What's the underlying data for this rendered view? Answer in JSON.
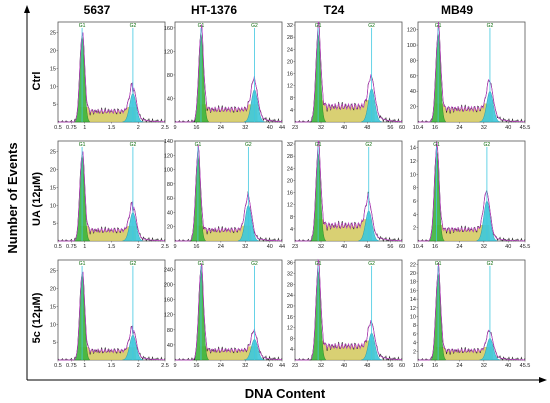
{
  "figure": {
    "xlabel": "DNA Content",
    "ylabel": "Number of Events",
    "columns": [
      "5637",
      "HT-1376",
      "T24",
      "MB49"
    ],
    "rows": [
      "Ctrl",
      "UA (12μM)",
      "5c (12μM)"
    ],
    "gate_labels": [
      "G1",
      "G2"
    ]
  },
  "colors": {
    "g1_fill": "#3cb43c",
    "g2_fill": "#3cc8dc",
    "s_fill": "#d2c85a",
    "model_line": "#c040c8",
    "raw_line": "#222222",
    "marker_line": "#40c8e0",
    "frame": "#555555"
  },
  "chart_data": [
    {
      "type": "area",
      "title": "5637 / Ctrl",
      "row": "Ctrl",
      "column": "5637",
      "x_ticks": [
        "0.5",
        "0.75",
        "1",
        "1.5",
        "2",
        "2.5"
      ],
      "y_ticks": [
        "5",
        "10",
        "15",
        "20",
        "25"
      ],
      "g1": {
        "x": 0.95,
        "peak": 24
      },
      "g2": {
        "x": 1.9,
        "peak": 8
      },
      "s_level": 3.5,
      "ylim": [
        0,
        28
      ]
    },
    {
      "type": "area",
      "title": "HT-1376 / Ctrl",
      "row": "Ctrl",
      "column": "HT-1376",
      "x_ticks": [
        "9",
        "16",
        "24",
        "32",
        "40",
        "44"
      ],
      "y_ticks": [
        "40",
        "80",
        "120",
        "160"
      ],
      "g1": {
        "x": 17.5,
        "peak": 150
      },
      "g2": {
        "x": 35,
        "peak": 55
      },
      "s_level": 25,
      "ylim": [
        0,
        170
      ]
    },
    {
      "type": "area",
      "title": "T24 / Ctrl",
      "row": "Ctrl",
      "column": "T24",
      "x_ticks": [
        "23",
        "32",
        "40",
        "48",
        "56",
        "60"
      ],
      "y_ticks": [
        "4",
        "8",
        "12",
        "16",
        "20",
        "24",
        "28",
        "32"
      ],
      "g1": {
        "x": 31,
        "peak": 29
      },
      "g2": {
        "x": 49.5,
        "peak": 11
      },
      "s_level": 6,
      "ylim": [
        0,
        33
      ]
    },
    {
      "type": "area",
      "title": "MB49 / Ctrl",
      "row": "Ctrl",
      "column": "MB49",
      "x_ticks": [
        "10.4",
        "16",
        "24",
        "32",
        "40",
        "45.5"
      ],
      "y_ticks": [
        "20",
        "40",
        "60",
        "80",
        "100",
        "120"
      ],
      "g1": {
        "x": 17,
        "peak": 115
      },
      "g2": {
        "x": 34,
        "peak": 40
      },
      "s_level": 20,
      "ylim": [
        0,
        130
      ]
    },
    {
      "type": "area",
      "title": "5637 / UA (12μM)",
      "row": "UA (12μM)",
      "column": "5637",
      "x_ticks": [
        "0.5",
        "0.75",
        "1",
        "1.5",
        "2",
        "2.5"
      ],
      "y_ticks": [
        "5",
        "10",
        "15",
        "20",
        "25"
      ],
      "g1": {
        "x": 0.95,
        "peak": 24
      },
      "g2": {
        "x": 1.9,
        "peak": 8
      },
      "s_level": 3.5,
      "ylim": [
        0,
        28
      ]
    },
    {
      "type": "area",
      "title": "HT-1376 / UA (12μM)",
      "row": "UA (12μM)",
      "column": "HT-1376",
      "x_ticks": [
        "9",
        "16",
        "24",
        "32",
        "40",
        "44"
      ],
      "y_ticks": [
        "20",
        "40",
        "60",
        "80",
        "100",
        "120",
        "140"
      ],
      "g1": {
        "x": 16.5,
        "peak": 120
      },
      "g2": {
        "x": 33,
        "peak": 50
      },
      "s_level": 18,
      "ylim": [
        0,
        140
      ]
    },
    {
      "type": "area",
      "title": "T24 / UA (12μM)",
      "row": "UA (12μM)",
      "column": "T24",
      "x_ticks": [
        "23",
        "32",
        "40",
        "48",
        "56",
        "60"
      ],
      "y_ticks": [
        "4",
        "8",
        "12",
        "16",
        "20",
        "24",
        "28",
        "32"
      ],
      "g1": {
        "x": 31,
        "peak": 29
      },
      "g2": {
        "x": 48.5,
        "peak": 10
      },
      "s_level": 6,
      "ylim": [
        0,
        33
      ]
    },
    {
      "type": "area",
      "title": "MB49 / UA (12μM)",
      "row": "UA (12μM)",
      "column": "MB49",
      "x_ticks": [
        "10.4",
        "16",
        "24",
        "32",
        "40",
        "45.5"
      ],
      "y_ticks": [
        "2",
        "4",
        "6",
        "8",
        "10",
        "12",
        "14"
      ],
      "g1": {
        "x": 16.5,
        "peak": 13.5
      },
      "g2": {
        "x": 33,
        "peak": 6
      },
      "s_level": 2,
      "ylim": [
        0,
        15
      ]
    },
    {
      "type": "area",
      "title": "5637 / 5c (12μM)",
      "row": "5c (12μM)",
      "column": "5637",
      "x_ticks": [
        "0.5",
        "0.75",
        "1",
        "1.5",
        "2",
        "2.5"
      ],
      "y_ticks": [
        "5",
        "10",
        "15",
        "20",
        "25"
      ],
      "g1": {
        "x": 0.95,
        "peak": 24
      },
      "g2": {
        "x": 1.9,
        "peak": 7
      },
      "s_level": 3,
      "ylim": [
        0,
        28
      ]
    },
    {
      "type": "area",
      "title": "HT-1376 / 5c (12μM)",
      "row": "5c (12μM)",
      "column": "HT-1376",
      "x_ticks": [
        "9",
        "16",
        "24",
        "32",
        "40",
        "44"
      ],
      "y_ticks": [
        "40",
        "80",
        "120",
        "160",
        "200",
        "240"
      ],
      "g1": {
        "x": 17.5,
        "peak": 240
      },
      "g2": {
        "x": 35,
        "peak": 55
      },
      "s_level": 30,
      "ylim": [
        0,
        265
      ]
    },
    {
      "type": "area",
      "title": "T24 / 5c (12μM)",
      "row": "5c (12μM)",
      "column": "T24",
      "x_ticks": [
        "23",
        "32",
        "40",
        "48",
        "56",
        "60"
      ],
      "y_ticks": [
        "4",
        "8",
        "12",
        "16",
        "20",
        "24",
        "28",
        "32",
        "36"
      ],
      "g1": {
        "x": 31,
        "peak": 33
      },
      "g2": {
        "x": 49.5,
        "peak": 10
      },
      "s_level": 6,
      "ylim": [
        0,
        37
      ]
    },
    {
      "type": "area",
      "title": "MB49 / 5c (12μM)",
      "row": "5c (12μM)",
      "column": "MB49",
      "x_ticks": [
        "10.4",
        "16",
        "24",
        "32",
        "40",
        "45.5"
      ],
      "y_ticks": [
        "2",
        "4",
        "6",
        "8",
        "10",
        "12",
        "14",
        "16",
        "18",
        "20",
        "22"
      ],
      "g1": {
        "x": 17,
        "peak": 20
      },
      "g2": {
        "x": 34,
        "peak": 5
      },
      "s_level": 2.5,
      "ylim": [
        0,
        23
      ]
    }
  ]
}
